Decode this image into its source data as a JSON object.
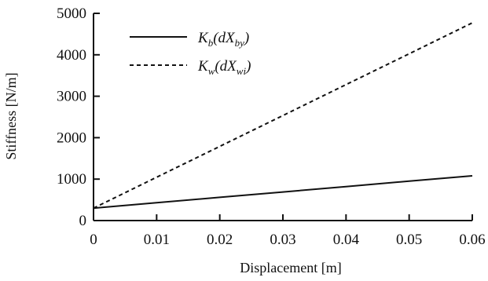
{
  "chart_data": {
    "type": "line",
    "xlabel": "Displacement [m]",
    "ylabel": "Stiffness [N/m]",
    "xlim": [
      0,
      0.06
    ],
    "ylim": [
      0,
      5000
    ],
    "xticks": [
      "0",
      "0.01",
      "0.02",
      "0.03",
      "0.04",
      "0.05",
      "0.06"
    ],
    "yticks": [
      "0",
      "1000",
      "2000",
      "3000",
      "4000",
      "5000"
    ],
    "grid": false,
    "legend_position": "top-left",
    "series": [
      {
        "name": "K_b(dX_by)",
        "style": "solid",
        "color": "#111111",
        "x": [
          0,
          0.01,
          0.02,
          0.03,
          0.04,
          0.05,
          0.06
        ],
        "y": [
          300,
          430,
          560,
          690,
          820,
          950,
          1080
        ]
      },
      {
        "name": "K_w(dX_wi)",
        "style": "dashed",
        "color": "#111111",
        "x": [
          0,
          0.01,
          0.02,
          0.03,
          0.04,
          0.05,
          0.06
        ],
        "y": [
          300,
          1045,
          1790,
          2535,
          3280,
          4025,
          4770
        ]
      }
    ]
  }
}
